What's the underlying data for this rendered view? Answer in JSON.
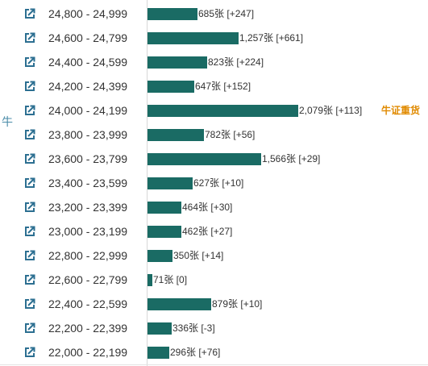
{
  "side_label": "牛",
  "annotation": "牛证重货",
  "colors": {
    "bar": "#1a6b64",
    "icon": "#2c6f91",
    "annotation": "#e08a00"
  },
  "icon_name": "external-link-icon",
  "chart_data": {
    "type": "bar",
    "orientation": "horizontal",
    "categories": [
      "24,800 - 24,999",
      "24,600 - 24,799",
      "24,400 - 24,599",
      "24,200 - 24,399",
      "24,000 - 24,199",
      "23,800 - 23,999",
      "23,600 - 23,799",
      "23,400 - 23,599",
      "23,200 - 23,399",
      "23,000 - 23,199",
      "22,800 - 22,999",
      "22,600 - 22,799",
      "22,400 - 22,599",
      "22,200 - 22,399",
      "22,000 - 22,199"
    ],
    "values": [
      685,
      1257,
      823,
      647,
      2079,
      782,
      1566,
      627,
      464,
      462,
      350,
      71,
      879,
      336,
      296
    ],
    "labels": [
      "685张 [+247]",
      "1,257张 [+661]",
      "823张 [+224]",
      "647张 [+152]",
      "2,079张 [+113]",
      "782张 [+56]",
      "1,566张 [+29]",
      "627张 [+10]",
      "464张 [+30]",
      "462张 [+27]",
      "350张 [+14]",
      "71张 [0]",
      "879张 [+10]",
      "336张 [-3]",
      "296张 [+76]"
    ],
    "changes": [
      247,
      661,
      224,
      152,
      113,
      56,
      29,
      10,
      30,
      27,
      14,
      0,
      10,
      -3,
      76
    ],
    "annotated_category": "24,000 - 24,199",
    "title": "",
    "xlabel": "",
    "ylabel": "",
    "grid": false,
    "legend": "none"
  }
}
